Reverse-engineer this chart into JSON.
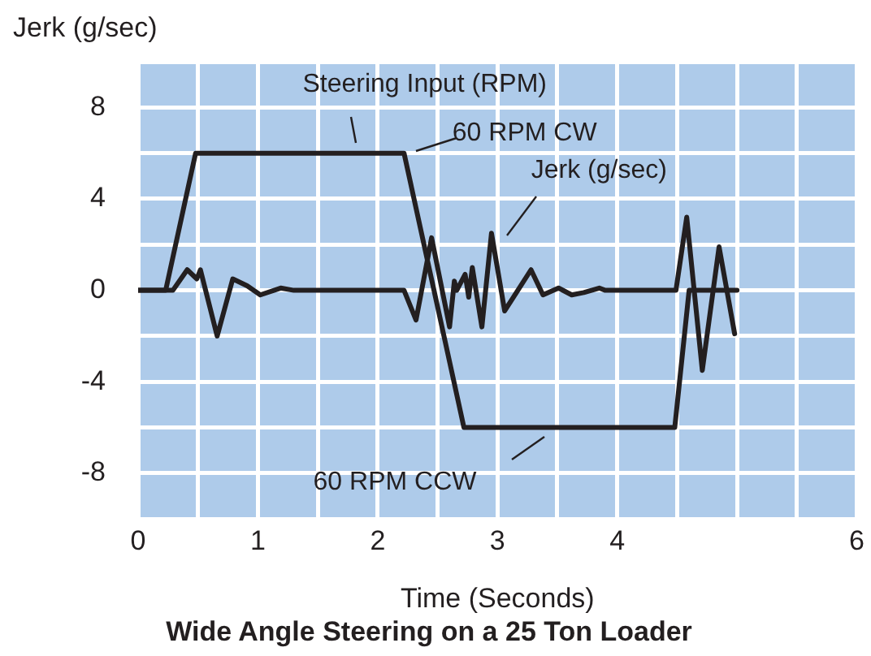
{
  "chart_data": {
    "type": "line",
    "title": "Wide Angle Steering on a 25 Ton Loader",
    "xlabel": "Time (Seconds)",
    "ylabel": "Jerk (g/sec)",
    "xlim": [
      0,
      6
    ],
    "xticks": [
      0,
      {
        "value": 0.5,
        "label": null
      },
      1,
      {
        "value": 1.5,
        "label": null
      },
      2,
      {
        "value": 2.5,
        "label": null
      },
      3,
      {
        "value": 3.5,
        "label": null
      },
      4,
      {
        "value": 4.5,
        "label": null
      },
      {
        "value": 5,
        "label": null
      },
      {
        "value": 5.5,
        "label": null
      },
      6
    ],
    "ylim": [
      -10,
      10
    ],
    "yticks": [
      {
        "value": -10,
        "label": null
      },
      -8,
      {
        "value": -6,
        "label": null
      },
      -4,
      {
        "value": -2,
        "label": null
      },
      0,
      {
        "value": 2,
        "label": null
      },
      4,
      {
        "value": 6,
        "label": null
      },
      8,
      {
        "value": 10,
        "label": null
      }
    ],
    "grid": true,
    "legend": false,
    "marker": "none",
    "line_style": "solid",
    "series": [
      {
        "color": "#231f20",
        "x": [
          0,
          0.23,
          0.48,
          2.22,
          2.72,
          4.48,
          4.6,
          5
        ],
        "values": [
          0,
          0,
          6,
          6,
          -6,
          -6,
          0,
          0
        ]
      },
      {
        "color": "#231f20",
        "x": [
          0,
          0.2,
          0.29,
          0.41,
          0.49,
          0.52,
          0.66,
          0.79,
          0.91,
          1.02,
          1.19,
          1.3,
          2.22,
          2.32,
          2.45,
          2.6,
          2.64,
          2.66,
          2.73,
          2.76,
          2.79,
          2.87,
          2.95,
          3.06,
          3.17,
          3.28,
          3.38,
          3.51,
          3.62,
          3.72,
          3.85,
          3.9,
          4.49,
          4.58,
          4.71,
          4.85,
          4.98
        ],
        "values": [
          0,
          0,
          0,
          0.9,
          0.5,
          0.9,
          -2,
          0.5,
          0.2,
          -0.2,
          0.1,
          0,
          0,
          -1.3,
          2.3,
          -1.6,
          0.4,
          0,
          0.7,
          -0.3,
          1,
          -1.6,
          2.5,
          -0.9,
          0,
          0.9,
          -0.2,
          0.1,
          -0.2,
          -0.1,
          0.1,
          0,
          0,
          3.2,
          -3.5,
          1.9,
          -1.9
        ]
      }
    ],
    "annotations": [
      {
        "text": "Steering Input (RPM)",
        "x": 1.85,
        "y": 6
      },
      {
        "text": "60 RPM CW",
        "x": 2.25,
        "y": 6
      },
      {
        "text": "Jerk (g/sec)",
        "x": 2.98,
        "y": 2.4
      },
      "60 RPM CCW"
    ]
  }
}
